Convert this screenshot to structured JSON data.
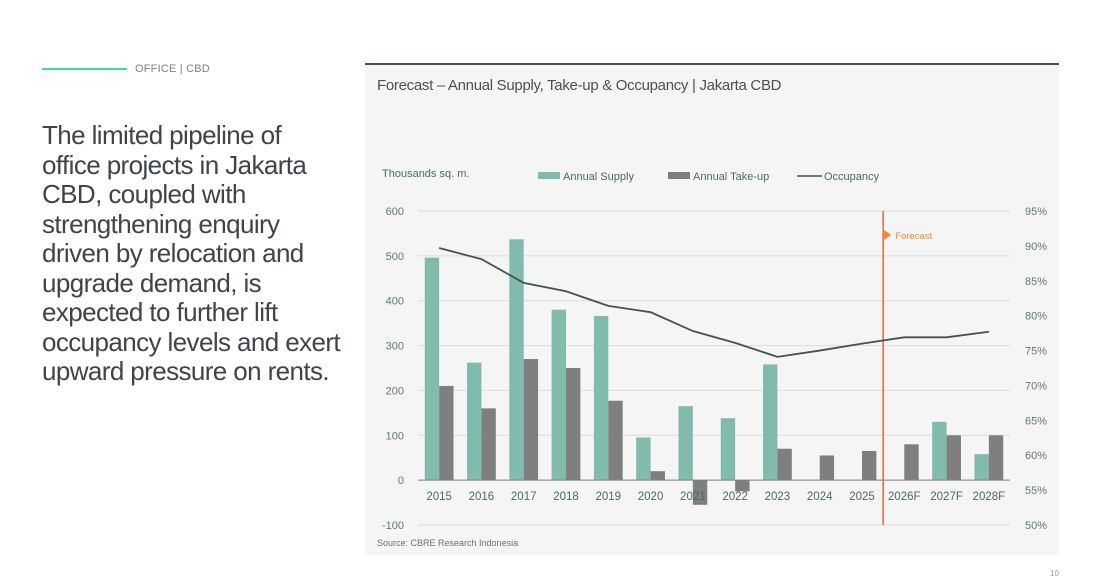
{
  "section_tag": {
    "label": "OFFICE  |  CBD"
  },
  "headline": "The limited pipeline of office projects in Jakarta CBD, coupled with strengthening enquiry driven by relocation and upgrade demand, is expected to further lift occupancy levels and exert upward pressure on rents.",
  "page_number": "10",
  "colors": {
    "accent_line": "#2fe39a",
    "supply": "#80bbad",
    "takeup": "#7f7f7f",
    "occupancy": "#435254",
    "forecast": "#e0693a",
    "forecast_label": "#f28a2e"
  },
  "chart_data": {
    "type": "bar",
    "title": "Forecast – Annual Supply, Take-up & Occupancy  |  Jakarta CBD",
    "ylabel": "Thousands sq. m.",
    "y2label": "",
    "source": "Source: CBRE Research Indonesia",
    "categories": [
      "2015",
      "2016",
      "2017",
      "2018",
      "2019",
      "2020",
      "2021",
      "2022",
      "2023",
      "2024",
      "2025",
      "2026F",
      "2027F",
      "2028F"
    ],
    "series": [
      {
        "name": "Annual Supply",
        "type": "bar",
        "axis": "left",
        "values": [
          496,
          262,
          537,
          380,
          366,
          95,
          165,
          138,
          258,
          0,
          0,
          0,
          130,
          58
        ]
      },
      {
        "name": "Annual Take-up",
        "type": "bar",
        "axis": "left",
        "values": [
          210,
          160,
          270,
          250,
          177,
          20,
          -55,
          -25,
          70,
          55,
          65,
          80,
          100,
          100
        ]
      },
      {
        "name": "Occupancy",
        "type": "line",
        "axis": "right",
        "unit": "%",
        "values": [
          89.7,
          88.1,
          84.7,
          83.5,
          81.4,
          80.5,
          77.8,
          76.1,
          74.1,
          75.0,
          76.0,
          76.9,
          76.9,
          77.7
        ]
      }
    ],
    "ylim": [
      -100,
      600
    ],
    "yticks": [
      "-100",
      "0",
      "100",
      "200",
      "300",
      "400",
      "500",
      "600"
    ],
    "y2lim": [
      50,
      95
    ],
    "y2ticks": [
      "50%",
      "55%",
      "60%",
      "65%",
      "70%",
      "75%",
      "80%",
      "85%",
      "90%",
      "95%"
    ],
    "grid": true,
    "legend_position": "top",
    "annotation": {
      "label": "Forecast",
      "after_category": "2025"
    }
  }
}
